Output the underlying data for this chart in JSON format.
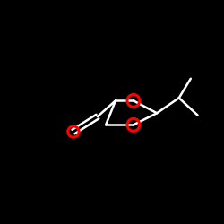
{
  "background_color": "#000000",
  "bond_color": "#ffffff",
  "oxygen_color": "#ff0000",
  "bond_lw": 1.8,
  "figsize": [
    2.5,
    2.5
  ],
  "dpi": 100,
  "xlim": [
    0,
    250
  ],
  "ylim": [
    0,
    250
  ],
  "O1": [
    152,
    142
  ],
  "O3": [
    152,
    107
  ],
  "C2": [
    186,
    125
  ],
  "C4": [
    126,
    107
  ],
  "C5": [
    112,
    142
  ],
  "ald_O": [
    65,
    152
  ],
  "iPr_CH": [
    218,
    103
  ],
  "iPr_CH3_upper": [
    235,
    75
  ],
  "iPr_CH3_lower": [
    245,
    128
  ],
  "O1_r": 9,
  "O3_r": 9,
  "ald_O_r": 8,
  "O_lw": 2.2
}
